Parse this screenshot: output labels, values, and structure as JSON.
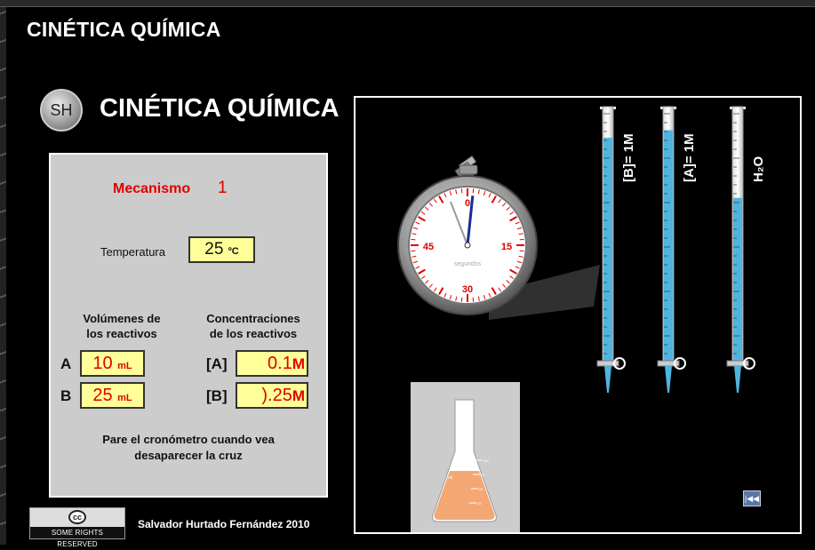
{
  "page_title": "CINÉTICA QUÍMICA",
  "logo_text": "SH",
  "app_title": "CINÉTICA QUÍMICA",
  "mechanism": {
    "label": "Mecanismo",
    "value": "1"
  },
  "temperature": {
    "label": "Temperatura",
    "value": "25",
    "unit": "ºC"
  },
  "volumes": {
    "header_line1": "Volúmenes de",
    "header_line2": "los reactivos",
    "a_letter": "A",
    "a_value": "10",
    "a_unit": "mL",
    "b_letter": "B",
    "b_value": "25",
    "b_unit": "mL"
  },
  "concentrations": {
    "header_line1": "Concentraciones",
    "header_line2": "de los reactivos",
    "a_label": "[A]",
    "a_value": "0.1",
    "a_unit": "M",
    "b_label": "[B]",
    "b_value": ").25",
    "b_unit": "M"
  },
  "instructions_line1": "Pare el cronómetro cuando vea",
  "instructions_line2": "desaparecer la cruz",
  "cc_badge": {
    "symbol": "cc",
    "text": "SOME RIGHTS RESERVED"
  },
  "credit": "Salvador Hurtado Fernández 2010",
  "stopwatch": {
    "dial_labels": [
      "0",
      "15",
      "30",
      "45"
    ],
    "unit_label": "segundos",
    "hand_seconds": 1
  },
  "burettes": [
    {
      "label": "[B]= 1M",
      "fill": 0.89
    },
    {
      "label": "[A]= 1M",
      "fill": 0.92
    },
    {
      "label": "H₂O",
      "fill": 0.65
    }
  ],
  "flask_marks": [
    "100",
    "75",
    "50",
    "25"
  ],
  "flask_side_label": "ml",
  "rewind_icon": "rewind-icon",
  "colors": {
    "liquid": "#4fb4e0",
    "flask_liquid": "#f5a773",
    "alert_red": "#e00000",
    "input_bg": "#ffff99",
    "panel_bg": "#cccccc"
  }
}
